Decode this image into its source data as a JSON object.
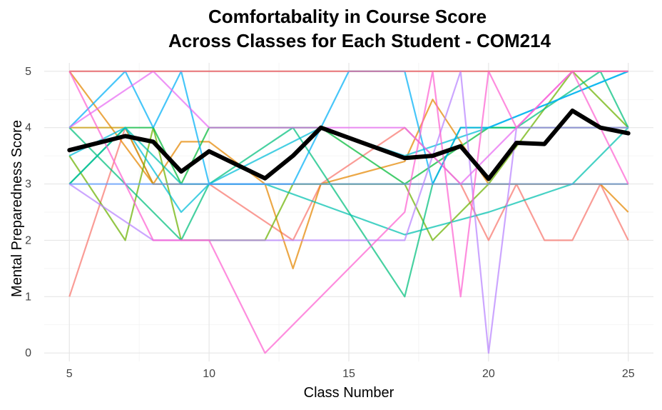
{
  "chart_data": {
    "type": "line",
    "title_line1": "Comfortabality in Course Score",
    "title_line2": "Across Classes for Each Student - COM214",
    "xlabel": "Class Number",
    "ylabel": "Mental Preparedness Score",
    "xlim": [
      4.1,
      25.9
    ],
    "ylim": [
      -0.15,
      5.15
    ],
    "x_ticks": [
      "5",
      "10",
      "15",
      "20",
      "25"
    ],
    "y_ticks": [
      "0",
      "1",
      "2",
      "3",
      "4",
      "5"
    ],
    "grid": true,
    "legend": "none",
    "mean_series": {
      "color": "#000000",
      "points": [
        [
          5,
          3.6
        ],
        [
          7,
          3.85
        ],
        [
          8,
          3.75
        ],
        [
          9,
          3.22
        ],
        [
          10,
          3.58
        ],
        [
          12,
          3.1
        ],
        [
          13,
          3.5
        ],
        [
          14,
          4.0
        ],
        [
          17,
          3.46
        ],
        [
          18,
          3.5
        ],
        [
          19,
          3.67
        ],
        [
          20,
          3.09
        ],
        [
          21,
          3.73
        ],
        [
          22,
          3.71
        ],
        [
          23,
          4.3
        ],
        [
          24,
          4.0
        ],
        [
          25,
          3.9
        ]
      ]
    },
    "series": [
      {
        "color": "#F8766D",
        "points": [
          [
            5,
            1
          ],
          [
            7,
            4
          ],
          [
            8,
            3
          ],
          [
            10,
            3
          ],
          [
            13,
            2
          ],
          [
            14,
            3
          ],
          [
            17,
            4
          ],
          [
            19,
            3
          ],
          [
            20,
            2
          ],
          [
            21,
            3
          ],
          [
            22,
            2
          ],
          [
            23,
            2
          ],
          [
            24,
            3
          ],
          [
            25,
            2
          ]
        ]
      },
      {
        "color": "#E58700",
        "points": [
          [
            5,
            5
          ],
          [
            8,
            3
          ],
          [
            9,
            3.75
          ],
          [
            10,
            3.75
          ],
          [
            12,
            3
          ],
          [
            13,
            1.5
          ],
          [
            14,
            3
          ],
          [
            17,
            3.4
          ],
          [
            18,
            4.5
          ],
          [
            20,
            3
          ],
          [
            21,
            3
          ],
          [
            22,
            3
          ],
          [
            24,
            3
          ],
          [
            25,
            2.5
          ]
        ]
      },
      {
        "color": "#C99800",
        "points": [
          [
            5,
            4
          ],
          [
            7,
            4
          ],
          [
            8,
            3
          ],
          [
            10,
            3
          ],
          [
            14,
            3
          ],
          [
            17,
            3
          ],
          [
            20,
            3
          ],
          [
            22,
            3
          ],
          [
            24,
            3
          ],
          [
            25,
            3
          ]
        ]
      },
      {
        "color": "#A3A500",
        "points": [
          [
            5,
            5
          ],
          [
            25,
            5
          ]
        ]
      },
      {
        "color": "#6BB100",
        "points": [
          [
            5,
            3.5
          ],
          [
            7,
            2
          ],
          [
            8,
            4
          ],
          [
            9,
            2
          ],
          [
            12,
            2
          ],
          [
            13,
            3
          ],
          [
            17,
            3
          ],
          [
            18,
            2
          ],
          [
            20,
            3
          ],
          [
            23,
            5
          ],
          [
            25,
            4
          ]
        ]
      },
      {
        "color": "#00BA38",
        "points": [
          [
            5,
            3
          ],
          [
            7,
            4
          ],
          [
            8,
            4
          ],
          [
            9,
            3
          ],
          [
            10,
            4
          ],
          [
            14,
            4
          ],
          [
            17,
            3
          ],
          [
            20,
            4
          ],
          [
            25,
            4
          ]
        ]
      },
      {
        "color": "#00BF7D",
        "points": [
          [
            5,
            4
          ],
          [
            7,
            3
          ],
          [
            9,
            2
          ],
          [
            10,
            3
          ],
          [
            13,
            4
          ],
          [
            17,
            1
          ],
          [
            18,
            3
          ],
          [
            19,
            4
          ],
          [
            21,
            4
          ],
          [
            24,
            5
          ],
          [
            25,
            4
          ]
        ]
      },
      {
        "color": "#00C0AF",
        "points": [
          [
            5,
            3
          ],
          [
            7,
            4
          ],
          [
            9,
            3
          ],
          [
            12,
            3
          ],
          [
            17,
            2.1
          ],
          [
            20,
            2.5
          ],
          [
            23,
            3
          ],
          [
            25,
            4
          ]
        ]
      },
      {
        "color": "#00BCD8",
        "points": [
          [
            5,
            3.5
          ],
          [
            7,
            4
          ],
          [
            9,
            2.5
          ],
          [
            10,
            3
          ],
          [
            14,
            4
          ],
          [
            17,
            3.5
          ],
          [
            20,
            4
          ],
          [
            25,
            5
          ]
        ]
      },
      {
        "color": "#00B0F6",
        "points": [
          [
            5,
            4
          ],
          [
            7,
            5
          ],
          [
            8,
            4
          ],
          [
            9,
            5
          ],
          [
            10,
            3
          ],
          [
            13,
            3
          ],
          [
            15,
            5
          ],
          [
            17,
            5
          ],
          [
            18,
            3
          ],
          [
            19,
            4
          ],
          [
            20,
            4
          ],
          [
            25,
            5
          ]
        ]
      },
      {
        "color": "#619CFF",
        "points": [
          [
            5,
            3
          ],
          [
            17,
            3
          ],
          [
            20,
            3
          ],
          [
            25,
            3
          ]
        ]
      },
      {
        "color": "#B983FF",
        "points": [
          [
            5,
            3
          ],
          [
            8,
            2
          ],
          [
            10,
            2
          ],
          [
            17,
            2
          ],
          [
            19,
            5
          ],
          [
            20,
            0
          ],
          [
            21,
            4
          ],
          [
            25,
            4
          ]
        ]
      },
      {
        "color": "#E76BF3",
        "points": [
          [
            5,
            4
          ],
          [
            8,
            5
          ],
          [
            10,
            4
          ],
          [
            14,
            4
          ],
          [
            17,
            4
          ],
          [
            19,
            3
          ],
          [
            21,
            4
          ],
          [
            23,
            5
          ],
          [
            25,
            5
          ]
        ]
      },
      {
        "color": "#FD61D1",
        "points": [
          [
            5,
            5
          ],
          [
            8,
            2
          ],
          [
            10,
            2
          ],
          [
            12,
            0
          ],
          [
            17,
            2.5
          ],
          [
            18,
            5
          ],
          [
            19,
            1
          ],
          [
            20,
            5
          ],
          [
            21,
            4
          ],
          [
            23,
            5
          ],
          [
            25,
            3
          ]
        ]
      },
      {
        "color": "#FF67A4",
        "points": [
          [
            5,
            5
          ],
          [
            25,
            5
          ]
        ]
      }
    ]
  }
}
